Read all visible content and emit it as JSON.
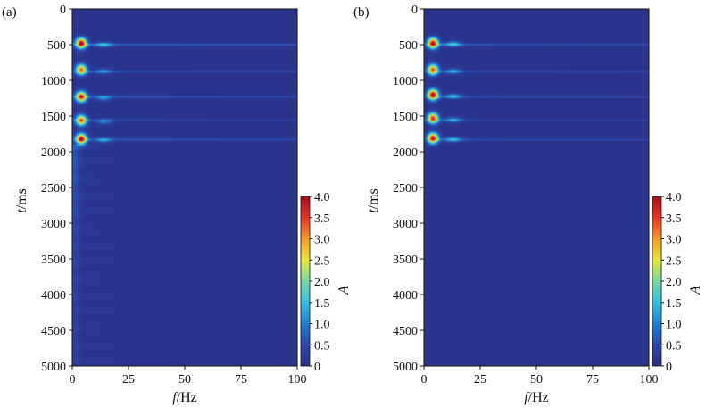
{
  "chart_data": [
    {
      "type": "heatmap",
      "panel_label": "(a)",
      "xlabel": "f/Hz",
      "ylabel": "t/ms",
      "colorbar_label": "A",
      "xlim": [
        0,
        100
      ],
      "ylim": [
        0,
        5000
      ],
      "y_inverted": true,
      "xticks": [
        0,
        25,
        50,
        75,
        100
      ],
      "yticks": [
        0,
        500,
        1000,
        1500,
        2000,
        2500,
        3000,
        3500,
        4000,
        4500,
        5000
      ],
      "colorbar_ticks": [
        "0",
        "0.5",
        "1.0",
        "1.5",
        "2.0",
        "2.5",
        "3.0",
        "3.5",
        "4.0"
      ],
      "colorbar_range": [
        0,
        4.0
      ],
      "colormap": [
        "#2b2f86",
        "#2c46a8",
        "#1f7fd0",
        "#35c0e0",
        "#78d8a0",
        "#e8e83a",
        "#f59a2a",
        "#e5332a",
        "#a0131c"
      ],
      "background_value": 0.1,
      "peaks": [
        {
          "t": 480,
          "f": 4,
          "A": 3.9
        },
        {
          "t": 850,
          "f": 4,
          "A": 3.2
        },
        {
          "t": 1230,
          "f": 4,
          "A": 3.6
        },
        {
          "t": 1560,
          "f": 4,
          "A": 3.2
        },
        {
          "t": 1820,
          "f": 4,
          "A": 3.8
        }
      ],
      "secondary_peaks": [
        {
          "t": 500,
          "f": 14,
          "A": 1.0
        },
        {
          "t": 870,
          "f": 14,
          "A": 0.8
        },
        {
          "t": 1250,
          "f": 14,
          "A": 0.9
        },
        {
          "t": 1580,
          "f": 14,
          "A": 0.8
        },
        {
          "t": 1840,
          "f": 14,
          "A": 0.9
        }
      ],
      "streaks": [
        {
          "t": 500,
          "A": 0.7
        },
        {
          "t": 880,
          "A": 0.5
        },
        {
          "t": 1230,
          "A": 0.6
        },
        {
          "t": 1560,
          "A": 0.5
        },
        {
          "t": 1830,
          "A": 0.6
        }
      ],
      "late_energy": true
    },
    {
      "type": "heatmap",
      "panel_label": "(b)",
      "xlabel": "f/Hz",
      "ylabel": "t/ms",
      "colorbar_label": "A",
      "xlim": [
        0,
        100
      ],
      "ylim": [
        0,
        5000
      ],
      "y_inverted": true,
      "xticks": [
        0,
        25,
        50,
        75,
        100
      ],
      "yticks": [
        0,
        500,
        1000,
        1500,
        2000,
        2500,
        3000,
        3500,
        4000,
        4500,
        5000
      ],
      "colorbar_ticks": [
        "0",
        "0.5",
        "1.0",
        "1.5",
        "2.0",
        "2.5",
        "3.0",
        "3.5",
        "4.0"
      ],
      "colorbar_range": [
        0,
        4.0
      ],
      "colormap": [
        "#2b2f86",
        "#2c46a8",
        "#1f7fd0",
        "#35c0e0",
        "#78d8a0",
        "#e8e83a",
        "#f59a2a",
        "#e5332a",
        "#a0131c"
      ],
      "background_value": 0.1,
      "peaks": [
        {
          "t": 480,
          "f": 4,
          "A": 3.8
        },
        {
          "t": 850,
          "f": 4,
          "A": 3.3
        },
        {
          "t": 1200,
          "f": 4,
          "A": 3.9
        },
        {
          "t": 1530,
          "f": 4,
          "A": 3.5
        },
        {
          "t": 1810,
          "f": 4,
          "A": 3.7
        }
      ],
      "secondary_peaks": [
        {
          "t": 490,
          "f": 13,
          "A": 1.2
        },
        {
          "t": 870,
          "f": 13,
          "A": 1.0
        },
        {
          "t": 1220,
          "f": 13,
          "A": 1.1
        },
        {
          "t": 1550,
          "f": 13,
          "A": 1.0
        },
        {
          "t": 1830,
          "f": 13,
          "A": 1.1
        }
      ],
      "streaks": [
        {
          "t": 500,
          "A": 0.6
        },
        {
          "t": 880,
          "A": 0.45
        },
        {
          "t": 1230,
          "A": 0.5
        },
        {
          "t": 1560,
          "A": 0.45
        },
        {
          "t": 1830,
          "A": 0.5
        }
      ],
      "late_energy": false
    }
  ]
}
